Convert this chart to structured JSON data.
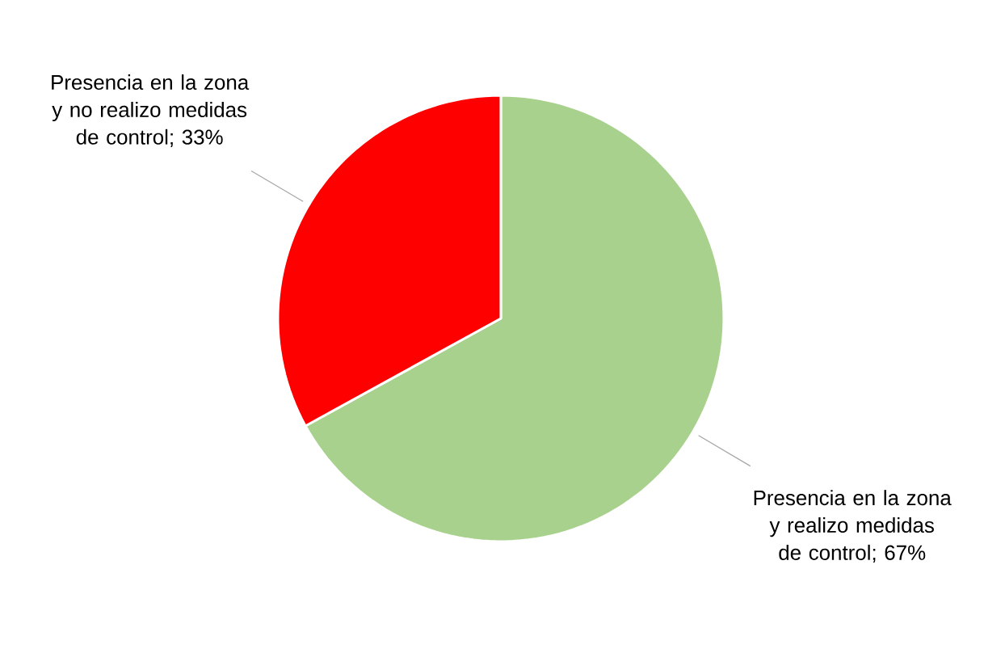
{
  "chart_data": {
    "type": "pie",
    "categories": [
      "Presencia en la zona y realizo medidas de control",
      "Presencia en la zona y no realizo medidas de control"
    ],
    "values": [
      67,
      33
    ],
    "colors": [
      "#a9d18e",
      "#ff0000"
    ],
    "value_labels": [
      "; 67%",
      "; 33%"
    ]
  }
}
